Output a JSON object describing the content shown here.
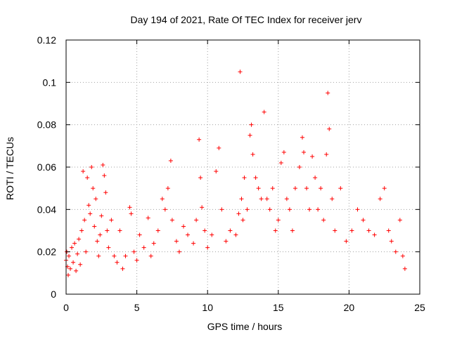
{
  "chart_data": {
    "type": "scatter",
    "title": "Day 194 of 2021, Rate Of TEC Index for receiver jerv",
    "xlabel": "GPS time / hours",
    "ylabel": "ROTI / TECUs",
    "xlim": [
      0,
      25
    ],
    "ylim": [
      0,
      0.12
    ],
    "x_ticks": [
      0,
      5,
      10,
      15,
      20,
      25
    ],
    "x_tick_labels": [
      "0",
      "5",
      "10",
      "15",
      "20",
      "25"
    ],
    "y_ticks": [
      0,
      0.02,
      0.04,
      0.06,
      0.08,
      0.1,
      0.12
    ],
    "y_tick_labels": [
      "0",
      "0.02",
      "0.04",
      "0.06",
      "0.08",
      "0.1",
      "0.12"
    ],
    "grid": true,
    "marker": "+",
    "color": "#ff0000",
    "series": [
      {
        "name": "ROTI",
        "points": [
          [
            0.0,
            0.016
          ],
          [
            0.05,
            0.02
          ],
          [
            0.1,
            0.013
          ],
          [
            0.15,
            0.009
          ],
          [
            0.2,
            0.018
          ],
          [
            0.3,
            0.012
          ],
          [
            0.4,
            0.022
          ],
          [
            0.5,
            0.015
          ],
          [
            0.6,
            0.024
          ],
          [
            0.7,
            0.011
          ],
          [
            0.8,
            0.019
          ],
          [
            0.9,
            0.026
          ],
          [
            1.0,
            0.014
          ],
          [
            1.1,
            0.03
          ],
          [
            1.2,
            0.058
          ],
          [
            1.3,
            0.035
          ],
          [
            1.4,
            0.02
          ],
          [
            1.5,
            0.055
          ],
          [
            1.6,
            0.042
          ],
          [
            1.7,
            0.038
          ],
          [
            1.8,
            0.06
          ],
          [
            1.9,
            0.05
          ],
          [
            2.0,
            0.032
          ],
          [
            2.1,
            0.045
          ],
          [
            2.2,
            0.025
          ],
          [
            2.3,
            0.018
          ],
          [
            2.4,
            0.028
          ],
          [
            2.5,
            0.037
          ],
          [
            2.6,
            0.061
          ],
          [
            2.7,
            0.056
          ],
          [
            2.8,
            0.048
          ],
          [
            2.9,
            0.03
          ],
          [
            3.0,
            0.022
          ],
          [
            3.2,
            0.035
          ],
          [
            3.4,
            0.018
          ],
          [
            3.6,
            0.015
          ],
          [
            3.8,
            0.03
          ],
          [
            4.0,
            0.012
          ],
          [
            4.2,
            0.018
          ],
          [
            4.5,
            0.041
          ],
          [
            4.6,
            0.038
          ],
          [
            4.8,
            0.02
          ],
          [
            5.0,
            0.016
          ],
          [
            5.2,
            0.028
          ],
          [
            5.5,
            0.022
          ],
          [
            5.8,
            0.036
          ],
          [
            6.0,
            0.018
          ],
          [
            6.2,
            0.024
          ],
          [
            6.5,
            0.03
          ],
          [
            6.8,
            0.045
          ],
          [
            7.0,
            0.04
          ],
          [
            7.2,
            0.05
          ],
          [
            7.4,
            0.063
          ],
          [
            7.5,
            0.035
          ],
          [
            7.8,
            0.025
          ],
          [
            8.0,
            0.02
          ],
          [
            8.3,
            0.032
          ],
          [
            8.6,
            0.028
          ],
          [
            9.0,
            0.024
          ],
          [
            9.2,
            0.035
          ],
          [
            9.4,
            0.073
          ],
          [
            9.5,
            0.055
          ],
          [
            9.6,
            0.041
          ],
          [
            9.8,
            0.03
          ],
          [
            10.0,
            0.022
          ],
          [
            10.3,
            0.028
          ],
          [
            10.6,
            0.058
          ],
          [
            10.8,
            0.069
          ],
          [
            11.0,
            0.04
          ],
          [
            11.3,
            0.025
          ],
          [
            11.6,
            0.03
          ],
          [
            12.0,
            0.028
          ],
          [
            12.2,
            0.038
          ],
          [
            12.3,
            0.105
          ],
          [
            12.4,
            0.045
          ],
          [
            12.5,
            0.035
          ],
          [
            12.6,
            0.055
          ],
          [
            12.8,
            0.04
          ],
          [
            13.0,
            0.075
          ],
          [
            13.1,
            0.08
          ],
          [
            13.2,
            0.066
          ],
          [
            13.4,
            0.055
          ],
          [
            13.6,
            0.05
          ],
          [
            13.8,
            0.045
          ],
          [
            14.0,
            0.086
          ],
          [
            14.2,
            0.045
          ],
          [
            14.4,
            0.04
          ],
          [
            14.6,
            0.05
          ],
          [
            14.8,
            0.03
          ],
          [
            15.0,
            0.035
          ],
          [
            15.2,
            0.062
          ],
          [
            15.4,
            0.067
          ],
          [
            15.6,
            0.045
          ],
          [
            15.8,
            0.04
          ],
          [
            16.0,
            0.03
          ],
          [
            16.2,
            0.05
          ],
          [
            16.5,
            0.06
          ],
          [
            16.7,
            0.074
          ],
          [
            16.8,
            0.067
          ],
          [
            17.0,
            0.05
          ],
          [
            17.2,
            0.04
          ],
          [
            17.4,
            0.065
          ],
          [
            17.6,
            0.055
          ],
          [
            17.8,
            0.04
          ],
          [
            18.0,
            0.05
          ],
          [
            18.2,
            0.035
          ],
          [
            18.4,
            0.066
          ],
          [
            18.5,
            0.095
          ],
          [
            18.6,
            0.078
          ],
          [
            18.8,
            0.045
          ],
          [
            19.0,
            0.03
          ],
          [
            19.4,
            0.05
          ],
          [
            19.8,
            0.025
          ],
          [
            20.2,
            0.03
          ],
          [
            20.6,
            0.04
          ],
          [
            21.0,
            0.035
          ],
          [
            21.4,
            0.03
          ],
          [
            21.8,
            0.028
          ],
          [
            22.2,
            0.045
          ],
          [
            22.5,
            0.05
          ],
          [
            22.8,
            0.03
          ],
          [
            23.0,
            0.025
          ],
          [
            23.3,
            0.02
          ],
          [
            23.6,
            0.035
          ],
          [
            23.8,
            0.018
          ],
          [
            23.95,
            0.012
          ]
        ]
      }
    ]
  }
}
